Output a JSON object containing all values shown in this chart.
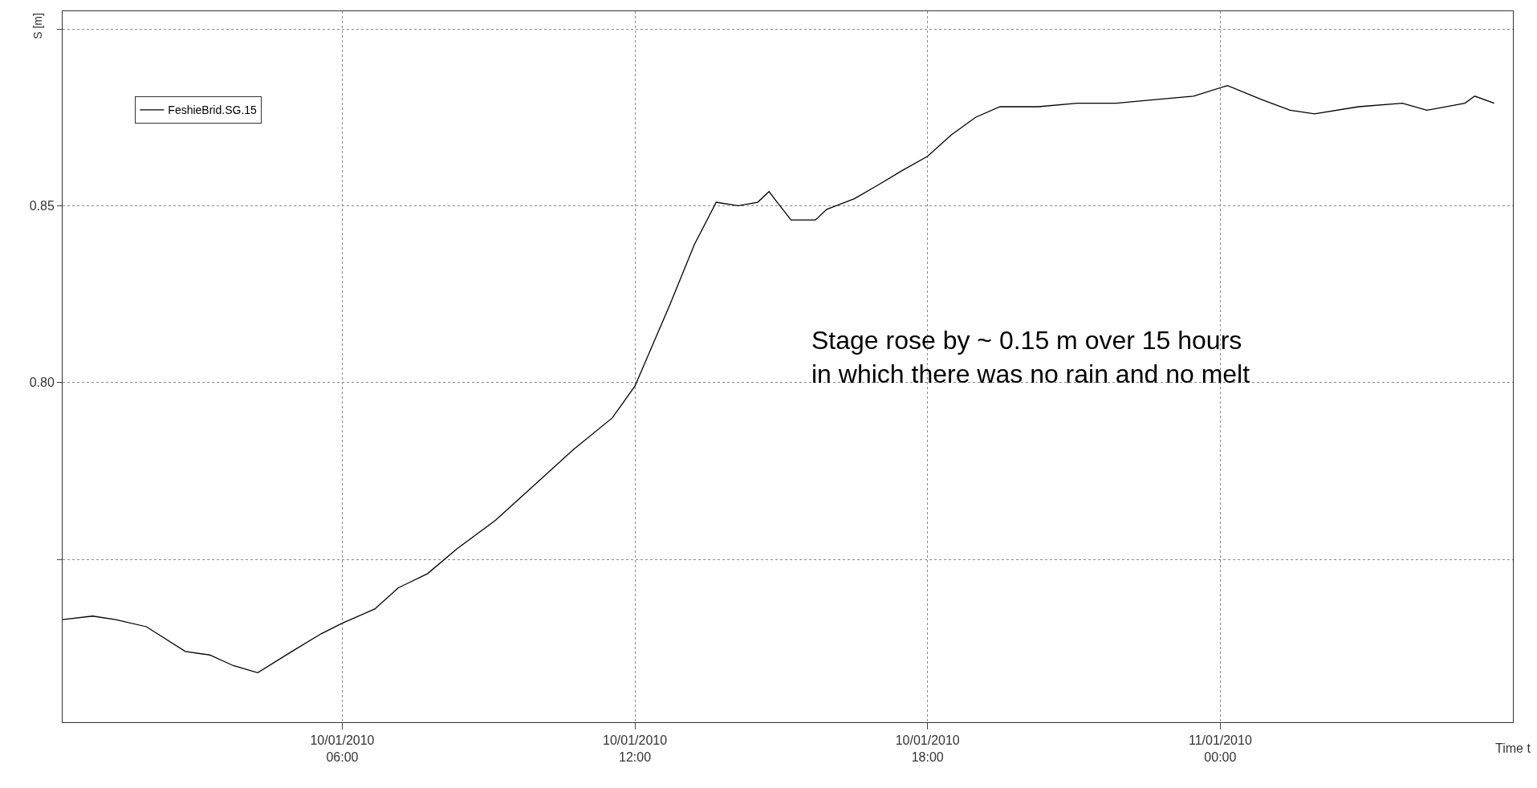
{
  "chart_data": {
    "type": "line",
    "ylabel": "S [m]",
    "xlabel": "Time t",
    "x": [
      "2010-01-10T00:16",
      "2010-01-10T00:53",
      "2010-01-10T01:21",
      "2010-01-10T01:59",
      "2010-01-10T02:47",
      "2010-01-10T03:17",
      "2010-01-10T03:46",
      "2010-01-10T04:16",
      "2010-01-10T04:58",
      "2010-01-10T05:34",
      "2010-01-10T06:00",
      "2010-01-10T06:40",
      "2010-01-10T07:09",
      "2010-01-10T07:45",
      "2010-01-10T08:21",
      "2010-01-10T09:08",
      "2010-01-10T09:56",
      "2010-01-10T10:44",
      "2010-01-10T11:32",
      "2010-01-10T12:00",
      "2010-01-10T12:43",
      "2010-01-10T13:13",
      "2010-01-10T13:40",
      "2010-01-10T14:07",
      "2010-01-10T14:31",
      "2010-01-10T14:45",
      "2010-01-10T14:55",
      "2010-01-10T15:12",
      "2010-01-10T15:42",
      "2010-01-10T15:56",
      "2010-01-10T16:30",
      "2010-01-10T17:00",
      "2010-01-10T17:29",
      "2010-01-10T18:00",
      "2010-01-10T18:29",
      "2010-01-10T18:59",
      "2010-01-10T19:29",
      "2010-01-10T20:16",
      "2010-01-10T21:04",
      "2010-01-10T21:52",
      "2010-01-10T22:40",
      "2010-01-10T23:27",
      "2010-01-11T00:09",
      "2010-01-11T00:51",
      "2010-01-11T01:26",
      "2010-01-11T01:56",
      "2010-01-11T02:50",
      "2010-01-11T03:44",
      "2010-01-11T04:14",
      "2010-01-11T05:01",
      "2010-01-11T05:13",
      "2010-01-11T05:37"
    ],
    "series": [
      {
        "name": "FeshieBrid.SG.15",
        "color": "#000000",
        "values": [
          0.733,
          0.734,
          0.733,
          0.731,
          0.724,
          0.723,
          0.72,
          0.718,
          0.724,
          0.729,
          0.732,
          0.736,
          0.742,
          0.746,
          0.753,
          0.761,
          0.771,
          0.781,
          0.79,
          0.799,
          0.822,
          0.839,
          0.851,
          0.85,
          0.851,
          0.854,
          0.851,
          0.846,
          0.846,
          0.849,
          0.852,
          0.856,
          0.86,
          0.864,
          0.87,
          0.875,
          0.878,
          0.878,
          0.879,
          0.879,
          0.88,
          0.881,
          0.884,
          0.88,
          0.877,
          0.876,
          0.878,
          0.879,
          0.877,
          0.879,
          0.881,
          0.879
        ]
      }
    ],
    "xlim": [
      "2010-01-10T00:16",
      "2010-01-11T06:00"
    ],
    "xticks": [
      {
        "value": "2010-01-10T06:00",
        "label": "10/01/2010\n06:00"
      },
      {
        "value": "2010-01-10T12:00",
        "label": "10/01/2010\n12:00"
      },
      {
        "value": "2010-01-10T18:00",
        "label": "10/01/2010\n18:00"
      },
      {
        "value": "2010-01-11T00:00",
        "label": "11/01/2010\n00:00"
      }
    ],
    "ylim": [
      0.704,
      0.905
    ],
    "yticks": [
      {
        "value": 0.75,
        "label": null
      },
      {
        "value": 0.8,
        "label": "0.80"
      },
      {
        "value": 0.85,
        "label": "0.85"
      },
      {
        "value": 0.9,
        "label": null
      }
    ],
    "grid": true,
    "legend": "top left",
    "marker": "none",
    "line_style": "solid",
    "annotations": [
      "Stage rose by ~ 0.15 m over 15 hours\nin which there was no rain and no melt"
    ]
  }
}
